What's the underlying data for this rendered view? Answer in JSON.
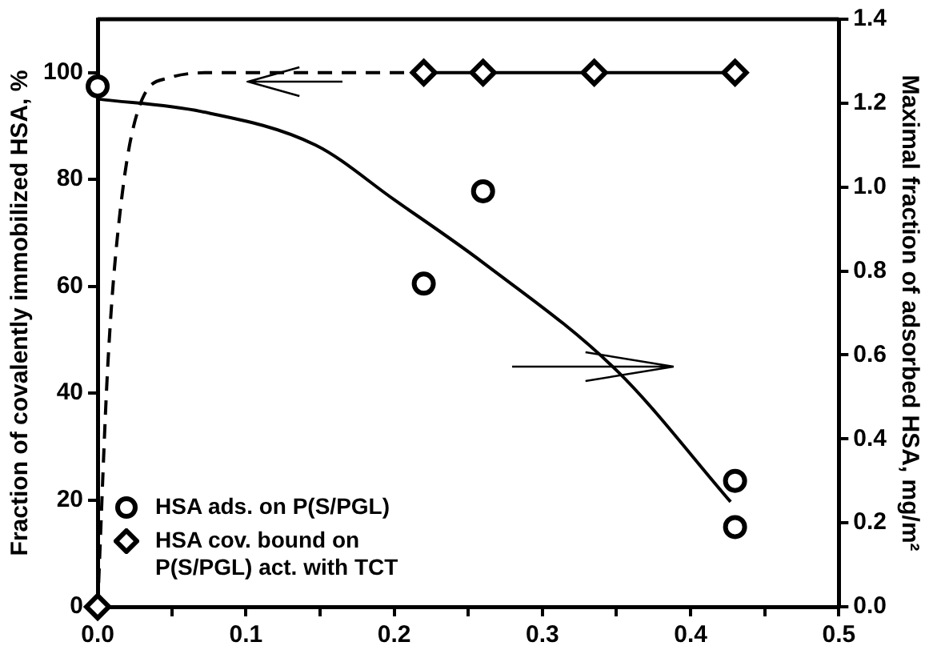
{
  "chart_data": {
    "type": "scatter",
    "ylabel": "Fraction of covalently immobilized HSA, %",
    "y2label": "Maximal fraction of adsorbed HSA, mg/m²",
    "xlim": [
      0,
      0.5
    ],
    "xticks": [
      {
        "value": 0,
        "label": "0.0"
      },
      {
        "value": 0.05,
        "label": null
      },
      {
        "value": 0.1,
        "label": "0.1"
      },
      {
        "value": 0.15,
        "label": null
      },
      {
        "value": 0.2,
        "label": "0.2"
      },
      {
        "value": 0.25,
        "label": null
      },
      {
        "value": 0.3,
        "label": "0.3"
      },
      {
        "value": 0.35,
        "label": null
      },
      {
        "value": 0.4,
        "label": "0.4"
      },
      {
        "value": 0.45,
        "label": null
      },
      {
        "value": 0.5,
        "label": "0.5"
      }
    ],
    "ylim": [
      0,
      110
    ],
    "yticks": [
      0,
      20,
      40,
      60,
      80,
      100
    ],
    "y2lim": [
      0,
      1.4
    ],
    "y2ticks": [
      {
        "value": 0,
        "label": "0.0"
      },
      {
        "value": 0.2,
        "label": "0.2"
      },
      {
        "value": 0.4,
        "label": "0.4"
      },
      {
        "value": 0.6,
        "label": "0.6"
      },
      {
        "value": 0.8,
        "label": "0.8"
      },
      {
        "value": 1,
        "label": "1.0"
      },
      {
        "value": 1.2,
        "label": "1.2"
      },
      {
        "value": 1.4,
        "label": "1.4"
      }
    ],
    "grid": false,
    "legend": "bottom left",
    "series": [
      {
        "name": "HSA ads. on P(S/PGL)",
        "type": "scatter",
        "marker": "circle",
        "axis": "y2",
        "color": "#000000",
        "x": [
          0,
          0.22,
          0.26,
          0.43,
          0.43
        ],
        "values": [
          1.24,
          0.77,
          0.99,
          0.3,
          0.19
        ]
      },
      {
        "name": "HSA cov. bound on P(S/PGL) act. with TCT",
        "type": "scatter",
        "marker": "diamond",
        "color": "#000000",
        "x": [
          0,
          0.22,
          0.26,
          0.335,
          0.43
        ],
        "values": [
          0,
          100,
          100,
          100,
          100
        ]
      },
      {
        "type": "line",
        "marker": "none",
        "line_style": "solid",
        "color": "#000000",
        "x": [
          0.22,
          0.43
        ],
        "values": [
          100,
          100
        ]
      },
      {
        "type": "line",
        "marker": "none",
        "line_style": "dashed",
        "color": "#000000",
        "x": [
          0,
          0.007,
          0.016,
          0.03,
          0.048,
          0.08,
          0.22
        ],
        "values": [
          0,
          46,
          76,
          95,
          99,
          100,
          100
        ]
      },
      {
        "type": "line",
        "marker": "none",
        "line_style": "solid",
        "axis": "y2",
        "color": "#000000",
        "x": [
          0,
          0.07,
          0.147,
          0.2,
          0.26,
          0.351,
          0.427
        ],
        "values": [
          1.21,
          1.18,
          1.1,
          0.97,
          0.82,
          0.56,
          0.25
        ]
      }
    ]
  }
}
